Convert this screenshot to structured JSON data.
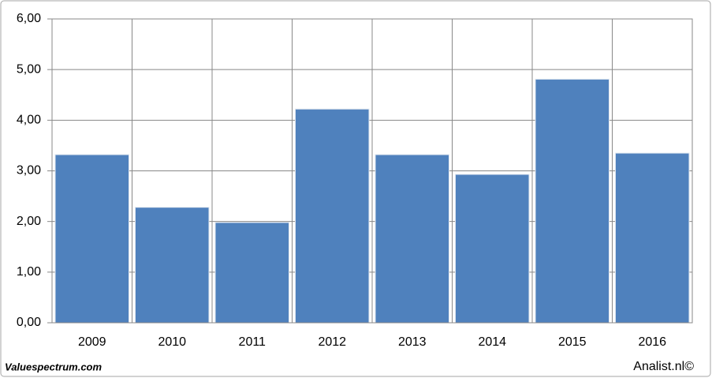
{
  "chart_data": {
    "type": "bar",
    "categories": [
      "2009",
      "2010",
      "2011",
      "2012",
      "2013",
      "2014",
      "2015",
      "2016"
    ],
    "values": [
      3.32,
      2.28,
      1.98,
      4.22,
      3.32,
      2.93,
      4.81,
      3.35
    ],
    "color": "#4f81bd",
    "ylim": [
      0,
      6
    ],
    "yticks": [
      {
        "value": 0,
        "label": "0,00"
      },
      {
        "value": 1,
        "label": "1,00"
      },
      {
        "value": 2,
        "label": "2,00"
      },
      {
        "value": 3,
        "label": "3,00"
      },
      {
        "value": 4,
        "label": "4,00"
      },
      {
        "value": 5,
        "label": "5,00"
      },
      {
        "value": 6,
        "label": "6,00"
      }
    ],
    "grid": true,
    "source": "Valuespectrum.com",
    "credit": "Analist.nl©"
  }
}
